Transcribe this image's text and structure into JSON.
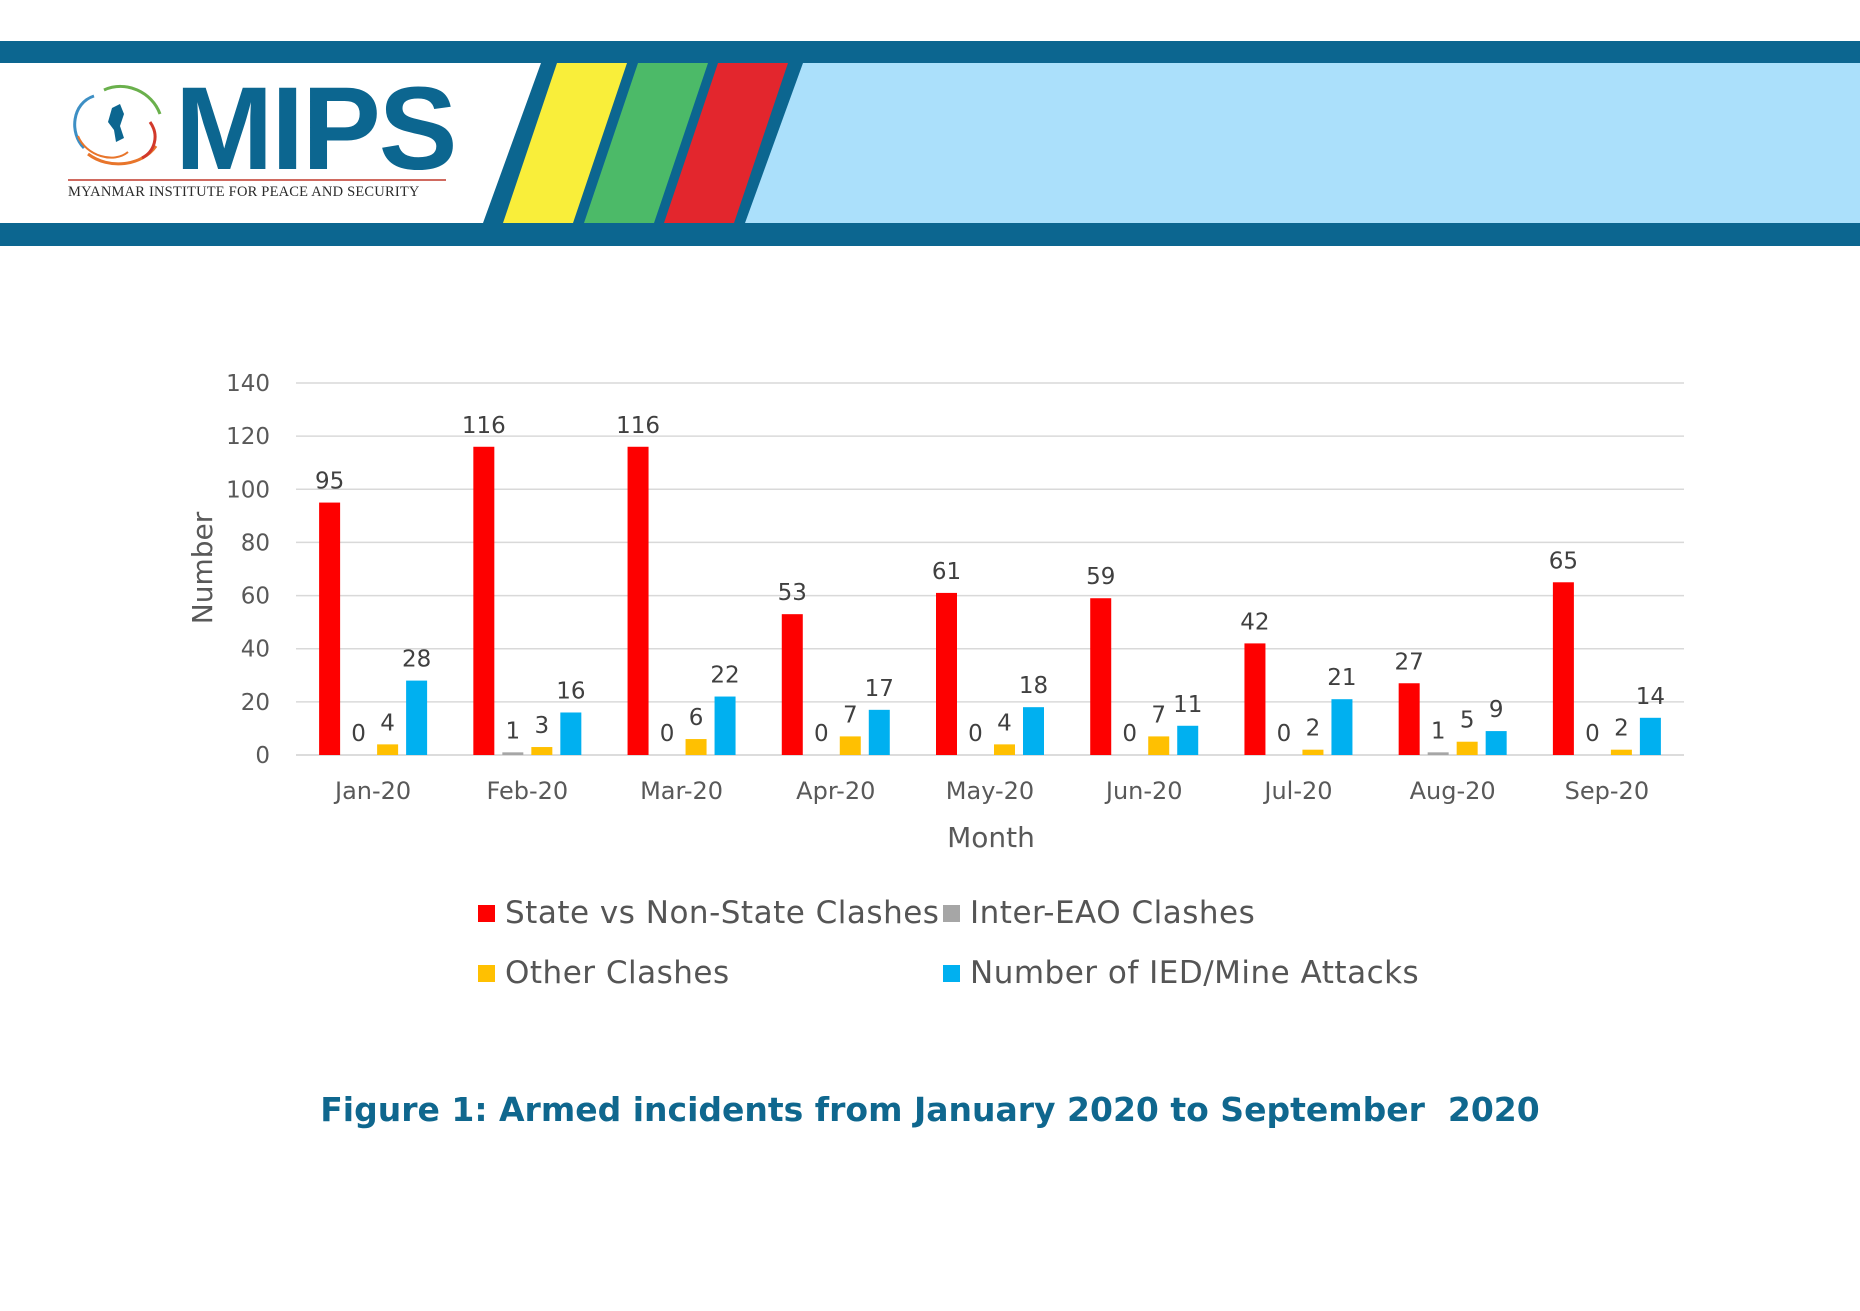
{
  "header": {
    "brand": "MIPS",
    "org_name": "MYANMAR INSTITUTE FOR PEACE AND SECURITY",
    "colors": {
      "navy": "#0c6690",
      "light_blue": "#abe0fb",
      "yellow": "#f9ee3a",
      "green": "#4cba68",
      "red": "#e3262d"
    }
  },
  "chart_data": {
    "type": "bar",
    "xlabel": "Month",
    "ylabel": "Number",
    "ylim": [
      0,
      140
    ],
    "yticks": [
      0,
      20,
      40,
      60,
      80,
      100,
      120,
      140
    ],
    "grid": true,
    "legend_position": "bottom",
    "categories": [
      "Jan-20",
      "Feb-20",
      "Mar-20",
      "Apr-20",
      "May-20",
      "Jun-20",
      "Jul-20",
      "Aug-20",
      "Sep-20"
    ],
    "series": [
      {
        "name": "State vs Non-State Clashes",
        "color": "#fe0000",
        "values": [
          95,
          116,
          116,
          53,
          61,
          59,
          42,
          27,
          65
        ]
      },
      {
        "name": "Inter-EAO Clashes",
        "color": "#a6a6a6",
        "values": [
          0,
          1,
          0,
          0,
          0,
          0,
          0,
          1,
          0
        ]
      },
      {
        "name": "Other Clashes",
        "color": "#ffc001",
        "values": [
          4,
          3,
          6,
          7,
          4,
          7,
          2,
          5,
          2
        ]
      },
      {
        "name": "Number of IED/Mine Attacks",
        "color": "#00b0f0",
        "values": [
          28,
          16,
          22,
          17,
          18,
          11,
          21,
          9,
          14
        ]
      }
    ]
  },
  "caption": "Figure 1: Armed incidents from January 2020 to September  2020"
}
